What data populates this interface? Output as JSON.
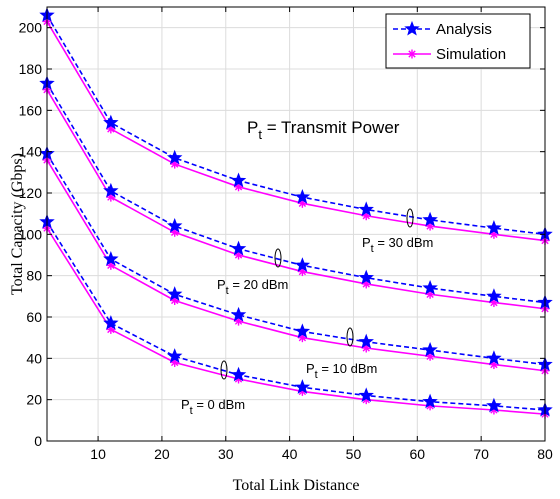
{
  "chart_data": {
    "type": "line",
    "xlabel": "Total Link Distance",
    "ylabel": "Total Capacity (Gbps)",
    "xlim": [
      2,
      80
    ],
    "ylim": [
      0,
      210
    ],
    "xticks": [
      10,
      20,
      30,
      40,
      50,
      60,
      70,
      80
    ],
    "yticks": [
      0,
      20,
      40,
      60,
      80,
      100,
      120,
      140,
      160,
      180,
      200
    ],
    "grid": true,
    "legend_position": "top-right",
    "legend": [
      {
        "label": "Analysis",
        "color": "#0000ff",
        "line": "dashed",
        "marker": "star"
      },
      {
        "label": "Simulation",
        "color": "#ff00ff",
        "line": "solid",
        "marker": "asterisk"
      }
    ],
    "x": [
      2,
      12,
      22,
      32,
      42,
      52,
      62,
      72,
      80
    ],
    "groups": [
      {
        "label_main": "P",
        "label_sub": "t",
        "label_rest": " = 30 dBm",
        "analysis": [
          206,
          154,
          137,
          126,
          118,
          112,
          107,
          103,
          100
        ],
        "simulation": [
          203,
          151,
          134,
          123,
          115,
          109,
          104,
          100,
          97
        ]
      },
      {
        "label_main": "P",
        "label_sub": "t",
        "label_rest": " = 20 dBm",
        "analysis": [
          173,
          121,
          104,
          93,
          85,
          79,
          74,
          70,
          67
        ],
        "simulation": [
          170,
          118,
          101,
          90,
          82,
          76,
          71,
          67,
          64
        ]
      },
      {
        "label_main": "P",
        "label_sub": "t",
        "label_rest": " = 10 dBm",
        "analysis": [
          139,
          88,
          71,
          61,
          53,
          48,
          44,
          40,
          37
        ],
        "simulation": [
          136,
          85,
          68,
          58,
          50,
          45,
          41,
          37,
          34
        ]
      },
      {
        "label_main": "P",
        "label_sub": "t",
        "label_rest": " = 0 dBm",
        "analysis": [
          106,
          57,
          41,
          32,
          26,
          22,
          19,
          17,
          15
        ],
        "simulation": [
          103,
          54,
          38,
          30,
          24,
          20,
          17,
          15,
          13
        ]
      }
    ],
    "annotation": {
      "main": "P",
      "sub": "t",
      "rest": " = Transmit Power"
    }
  }
}
